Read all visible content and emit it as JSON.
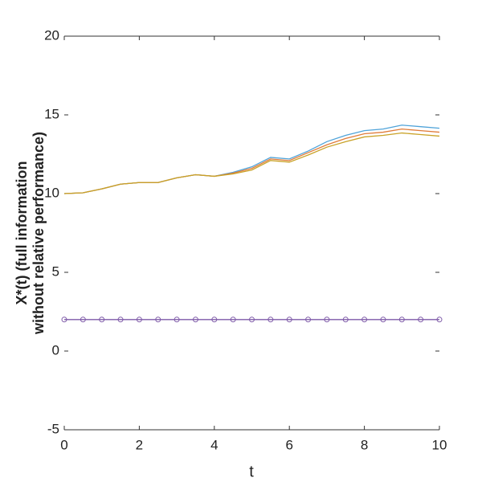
{
  "chart_data": {
    "type": "line",
    "x_label": "t",
    "y_label": [
      "X*(t) (full information",
      "without relative performance)"
    ],
    "x": [
      0,
      0.5,
      1,
      1.5,
      2,
      2.5,
      3,
      3.5,
      4,
      4.5,
      5,
      5.5,
      6,
      6.5,
      7,
      7.5,
      8,
      8.5,
      9,
      9.5,
      10
    ],
    "series": [
      {
        "color": "#4fa3d9",
        "values": [
          10,
          10.05,
          10.3,
          10.6,
          10.7,
          10.7,
          11.0,
          11.2,
          11.1,
          11.35,
          11.7,
          12.3,
          12.2,
          12.7,
          13.3,
          13.7,
          14.0,
          14.1,
          14.35,
          14.25,
          14.15
        ]
      },
      {
        "color": "#e07b39",
        "values": [
          10,
          10.05,
          10.3,
          10.6,
          10.7,
          10.7,
          11.0,
          11.2,
          11.1,
          11.3,
          11.6,
          12.2,
          12.1,
          12.6,
          13.1,
          13.5,
          13.8,
          13.9,
          14.1,
          14.0,
          13.9
        ]
      },
      {
        "color": "#c9a227",
        "values": [
          10,
          10.05,
          10.3,
          10.6,
          10.7,
          10.7,
          11.0,
          11.2,
          11.1,
          11.25,
          11.5,
          12.1,
          12.0,
          12.45,
          12.95,
          13.3,
          13.6,
          13.7,
          13.85,
          13.75,
          13.65
        ]
      },
      {
        "color": "#7e5aa8",
        "marker": true,
        "values": [
          2,
          2,
          2,
          2,
          2,
          2,
          2,
          2,
          2,
          2,
          2,
          2,
          2,
          2,
          2,
          2,
          2,
          2,
          2,
          2,
          2
        ]
      }
    ],
    "xlim": [
      0,
      10
    ],
    "xticks": [
      0,
      2,
      4,
      6,
      8,
      10
    ],
    "ylim": [
      -5,
      20
    ],
    "yticks": [
      -5,
      0,
      5,
      10,
      15,
      20
    ]
  }
}
